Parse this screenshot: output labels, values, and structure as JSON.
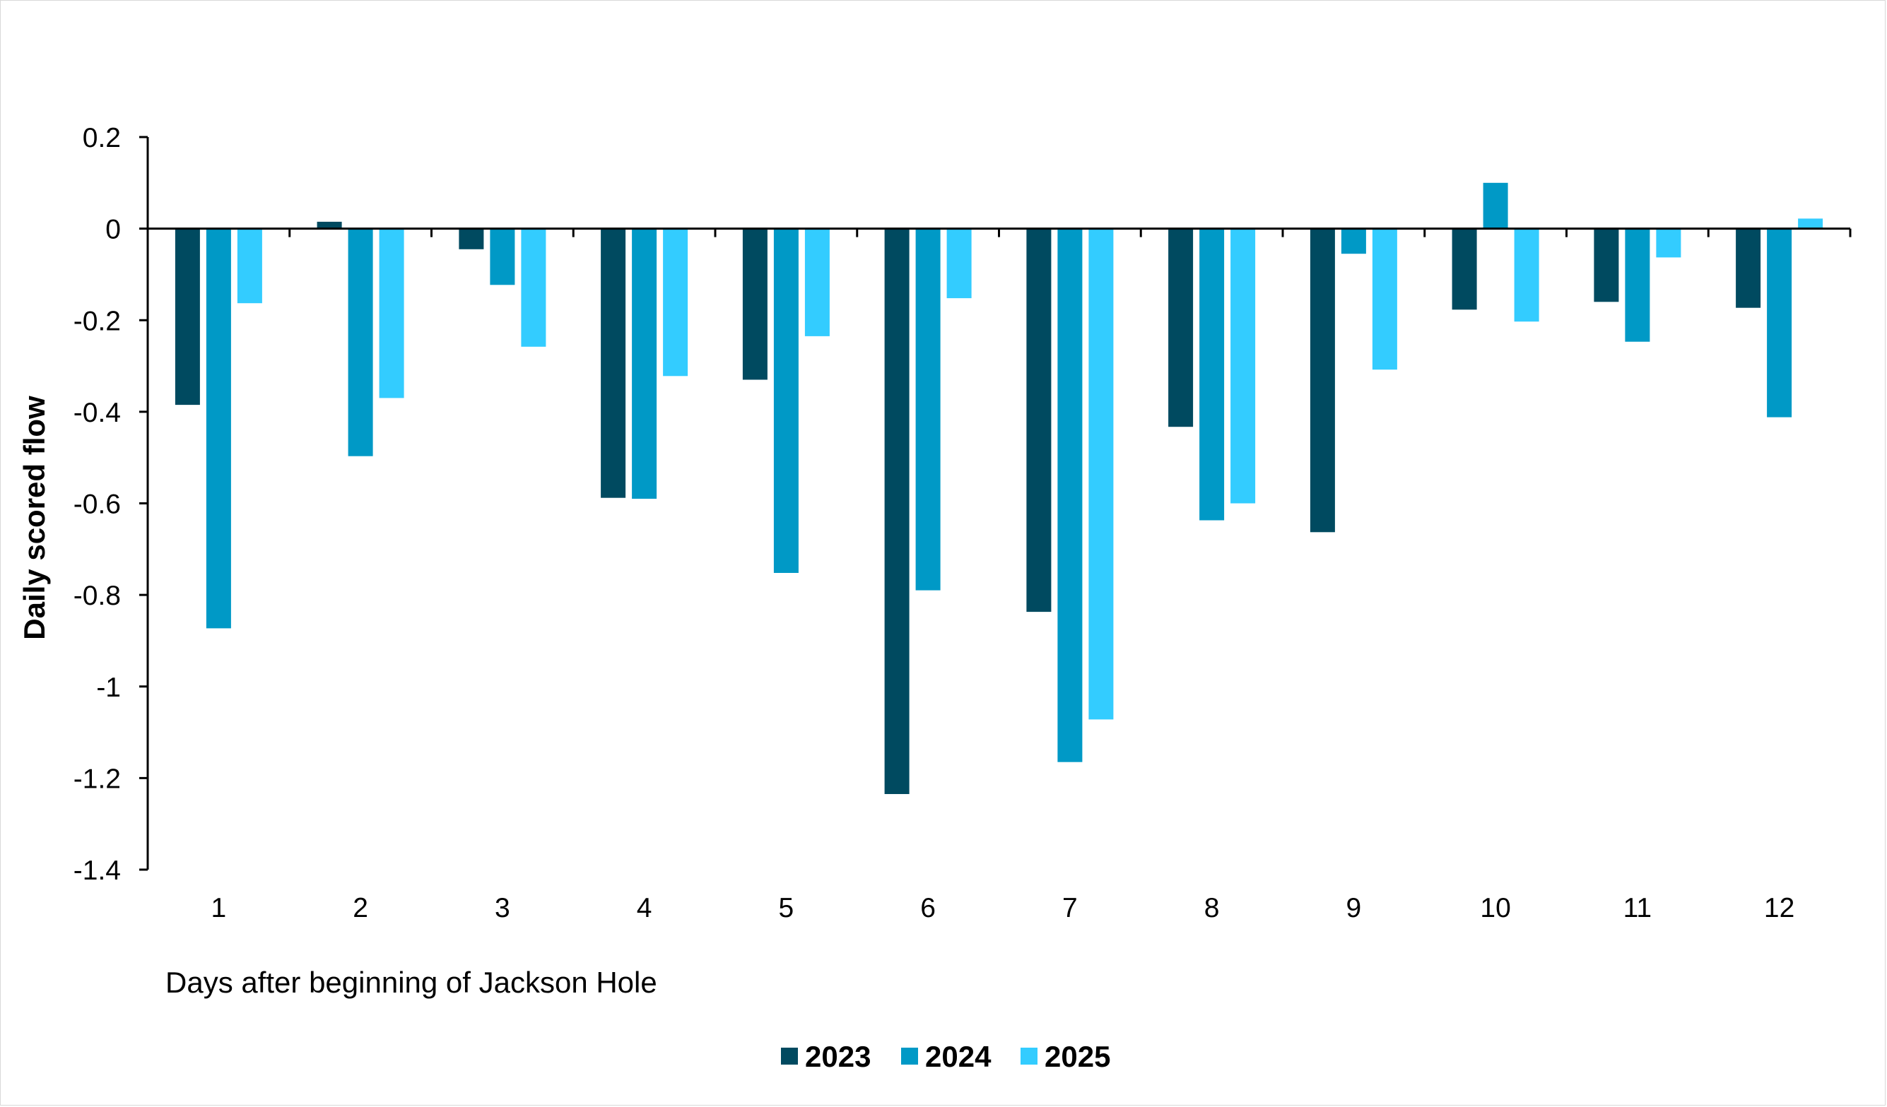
{
  "chart_data": {
    "type": "bar",
    "title": "",
    "xlabel": "Days after beginning of Jackson Hole",
    "ylabel": "Daily scored flow",
    "categories": [
      "1",
      "2",
      "3",
      "4",
      "5",
      "6",
      "7",
      "8",
      "9",
      "10",
      "11",
      "12"
    ],
    "ylim": [
      -1.4,
      0.2
    ],
    "yticks": [
      0.2,
      0,
      -0.2,
      -0.4,
      -0.6,
      -0.8,
      -1,
      -1.2,
      -1.4
    ],
    "ytick_labels": [
      "0.2",
      "0",
      "-0.2",
      "-0.4",
      "-0.6",
      "-0.8",
      "-1",
      "-1.2",
      "-1.4"
    ],
    "grid": false,
    "legend_position": "bottom",
    "series": [
      {
        "name": "2023",
        "color": "#004a60",
        "values": [
          -0.385,
          0.015,
          -0.045,
          -0.588,
          -0.33,
          -1.235,
          -0.837,
          -0.433,
          -0.663,
          -0.177,
          -0.16,
          -0.173
        ]
      },
      {
        "name": "2024",
        "color": "#0099c6",
        "values": [
          -0.873,
          -0.497,
          -0.123,
          -0.59,
          -0.752,
          -0.79,
          -1.165,
          -0.637,
          -0.055,
          0.1,
          -0.247,
          -0.412
        ]
      },
      {
        "name": "2025",
        "color": "#33ccff",
        "values": [
          -0.163,
          -0.37,
          -0.258,
          -0.322,
          -0.235,
          -0.152,
          -1.072,
          -0.6,
          -0.308,
          -0.203,
          -0.063,
          0.022
        ]
      }
    ]
  }
}
